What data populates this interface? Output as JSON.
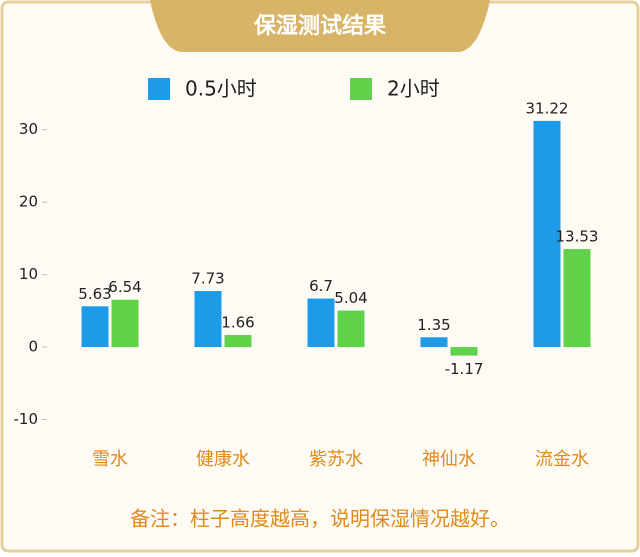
{
  "chart_data": {
    "type": "bar",
    "title": "保湿测试结果",
    "categories": [
      "雪水",
      "健康水",
      "紫苏水",
      "神仙水",
      "流金水"
    ],
    "series": [
      {
        "name": "0.5小时",
        "color": "#1e9be8",
        "values": [
          5.63,
          7.73,
          6.7,
          1.35,
          31.22
        ]
      },
      {
        "name": "2小时",
        "color": "#5fd24a",
        "values": [
          6.54,
          1.66,
          5.04,
          -1.17,
          13.53
        ]
      }
    ],
    "ylim": [
      -12,
      33
    ],
    "yticks": [
      -10,
      0,
      10,
      20,
      30
    ],
    "grid": false,
    "note": "备注：柱子高度越高，说明保湿情况越好。"
  }
}
